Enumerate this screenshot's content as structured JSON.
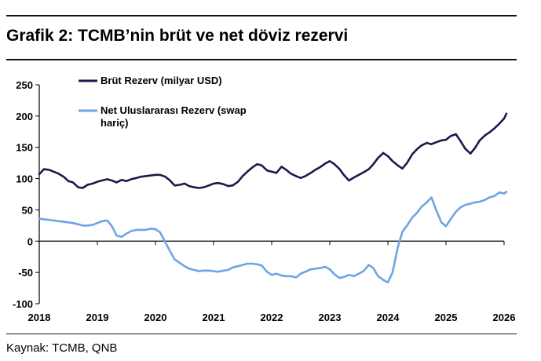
{
  "title": "Grafik 2: TCMB’nin brüt ve net döviz rezervi",
  "source": "Kaynak: TCMB, QNB",
  "colors": {
    "gross": "#1a1a4b",
    "net": "#6fa3e6",
    "axis": "#000000"
  },
  "chart_data": {
    "type": "line",
    "title": "Grafik 2: TCMB’nin brüt ve net döviz rezervi",
    "xlabel": "",
    "ylabel": "",
    "xlim": [
      2018,
      2026
    ],
    "ylim": [
      -100,
      250
    ],
    "yticks": [
      "250",
      "200",
      "150",
      "100",
      "50",
      "0",
      "-50",
      "-100"
    ],
    "ytick_values": [
      250,
      200,
      150,
      100,
      50,
      0,
      -50,
      -100
    ],
    "xticks": [
      "2018",
      "2019",
      "2020",
      "2021",
      "2022",
      "2023",
      "2024",
      "2025",
      "2026"
    ],
    "xtick_values": [
      2018,
      2019,
      2020,
      2021,
      2022,
      2023,
      2024,
      2025,
      2026
    ],
    "grid": false,
    "legend": "top-left",
    "series": [
      {
        "name": "Brüt Rezerv (milyar USD)",
        "legend_lines": [
          "Brüt Rezerv (milyar USD)"
        ],
        "x": [
          2018.0,
          2018.08,
          2018.17,
          2018.25,
          2018.33,
          2018.42,
          2018.5,
          2018.58,
          2018.67,
          2018.75,
          2018.83,
          2018.92,
          2019.0,
          2019.08,
          2019.17,
          2019.25,
          2019.33,
          2019.42,
          2019.5,
          2019.58,
          2019.67,
          2019.75,
          2019.83,
          2019.92,
          2020.0,
          2020.08,
          2020.17,
          2020.25,
          2020.33,
          2020.42,
          2020.5,
          2020.58,
          2020.67,
          2020.75,
          2020.83,
          2020.92,
          2021.0,
          2021.08,
          2021.17,
          2021.25,
          2021.33,
          2021.42,
          2021.5,
          2021.58,
          2021.67,
          2021.75,
          2021.83,
          2021.92,
          2022.0,
          2022.08,
          2022.17,
          2022.25,
          2022.33,
          2022.42,
          2022.5,
          2022.58,
          2022.67,
          2022.75,
          2022.83,
          2022.92,
          2023.0,
          2023.08,
          2023.17,
          2023.25,
          2023.33,
          2023.42,
          2023.5,
          2023.58,
          2023.67,
          2023.75,
          2023.83,
          2023.92,
          2024.0,
          2024.08,
          2024.17,
          2024.25,
          2024.33,
          2024.42,
          2024.5,
          2024.58,
          2024.67,
          2024.75,
          2024.83,
          2024.92,
          2025.0,
          2025.08,
          2025.17,
          2025.25,
          2025.33,
          2025.42,
          2025.5,
          2025.58,
          2025.67,
          2025.75,
          2025.83,
          2025.92,
          2026.0,
          2026.04
        ],
        "values": [
          107,
          115,
          114,
          111,
          108,
          103,
          96,
          94,
          86,
          85,
          90,
          92,
          95,
          97,
          99,
          97,
          94,
          98,
          96,
          99,
          101,
          103,
          104,
          105,
          106,
          106,
          103,
          97,
          89,
          90,
          92,
          88,
          86,
          85,
          86,
          89,
          92,
          93,
          91,
          88,
          89,
          95,
          104,
          111,
          118,
          123,
          121,
          113,
          111,
          109,
          119,
          114,
          108,
          104,
          101,
          104,
          109,
          114,
          118,
          124,
          128,
          123,
          115,
          105,
          97,
          102,
          106,
          110,
          115,
          123,
          133,
          141,
          136,
          128,
          121,
          116,
          125,
          139,
          147,
          153,
          157,
          155,
          158,
          161,
          162,
          168,
          171,
          160,
          148,
          140,
          149,
          161,
          169,
          174,
          180,
          188,
          196,
          204
        ]
      },
      {
        "name": "Net Uluslararası Rezerv (swap hariç)",
        "legend_lines": [
          "Net Uluslararası Rezerv (swap",
          "hariç)"
        ],
        "x": [
          2018.0,
          2018.08,
          2018.17,
          2018.25,
          2018.33,
          2018.42,
          2018.5,
          2018.58,
          2018.67,
          2018.75,
          2018.83,
          2018.92,
          2019.0,
          2019.08,
          2019.17,
          2019.25,
          2019.33,
          2019.42,
          2019.5,
          2019.58,
          2019.67,
          2019.75,
          2019.83,
          2019.92,
          2020.0,
          2020.08,
          2020.17,
          2020.25,
          2020.33,
          2020.42,
          2020.5,
          2020.58,
          2020.67,
          2020.75,
          2020.83,
          2020.92,
          2021.0,
          2021.08,
          2021.17,
          2021.25,
          2021.33,
          2021.42,
          2021.5,
          2021.58,
          2021.67,
          2021.75,
          2021.83,
          2021.92,
          2022.0,
          2022.08,
          2022.17,
          2022.25,
          2022.33,
          2022.42,
          2022.5,
          2022.58,
          2022.67,
          2022.75,
          2022.83,
          2022.92,
          2023.0,
          2023.08,
          2023.17,
          2023.25,
          2023.33,
          2023.42,
          2023.5,
          2023.58,
          2023.67,
          2023.75,
          2023.83,
          2023.92,
          2024.0,
          2024.08,
          2024.17,
          2024.25,
          2024.33,
          2024.42,
          2024.5,
          2024.58,
          2024.67,
          2024.75,
          2024.83,
          2024.92,
          2025.0,
          2025.08,
          2025.17,
          2025.25,
          2025.33,
          2025.42,
          2025.5,
          2025.58,
          2025.67,
          2025.75,
          2025.83,
          2025.92,
          2026.0,
          2026.04
        ],
        "values": [
          36,
          35,
          34,
          33,
          32,
          31,
          30,
          29,
          27,
          25,
          25,
          26,
          29,
          32,
          33,
          24,
          9,
          7,
          12,
          16,
          18,
          18,
          18,
          20,
          19,
          14,
          -2,
          -16,
          -29,
          -35,
          -40,
          -44,
          -46,
          -48,
          -47,
          -47,
          -48,
          -49,
          -47,
          -46,
          -42,
          -40,
          -38,
          -36,
          -36,
          -37,
          -39,
          -49,
          -54,
          -52,
          -55,
          -56,
          -56,
          -58,
          -52,
          -49,
          -45,
          -44,
          -43,
          -41,
          -45,
          -53,
          -59,
          -57,
          -54,
          -56,
          -52,
          -48,
          -38,
          -43,
          -56,
          -62,
          -66,
          -50,
          -10,
          15,
          25,
          38,
          45,
          55,
          62,
          70,
          50,
          30,
          24,
          35,
          47,
          54,
          58,
          60,
          62,
          63,
          66,
          70,
          72,
          78,
          76,
          79
        ]
      }
    ]
  }
}
